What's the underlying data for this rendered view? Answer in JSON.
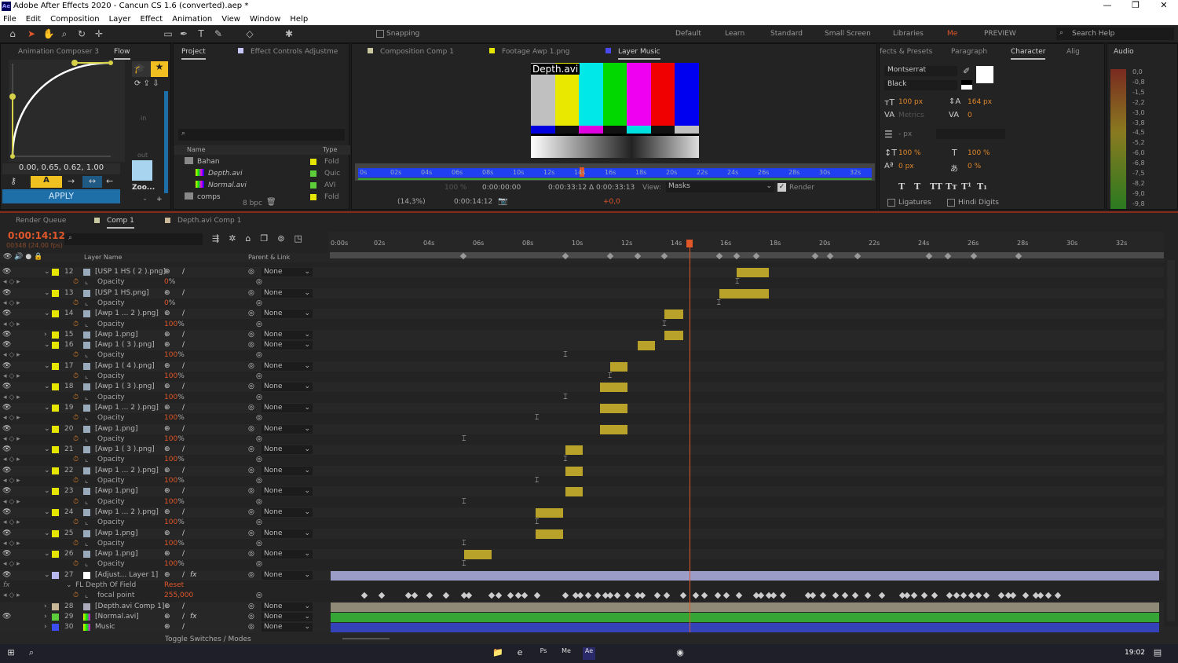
{
  "window": {
    "title": "Adobe After Effects 2020 - Cancun CS 1.6 (converted).aep *",
    "app_badge": "Ae"
  },
  "menu": [
    "File",
    "Edit",
    "Composition",
    "Layer",
    "Effect",
    "Animation",
    "View",
    "Window",
    "Help"
  ],
  "toolbar": {
    "snapping": "Snapping",
    "workspaces": [
      "Default",
      "Learn",
      "Standard",
      "Small Screen",
      "Libraries",
      "Me",
      "PREVIEW"
    ],
    "search_placeholder": "Search Help"
  },
  "animation_composer": {
    "tab": "Animation Composer 3",
    "tab2": "Flow",
    "curve_values": "0.00, 0.65, 0.62, 1.00",
    "apply": "APPLY",
    "a_label": "A",
    "in_label": "in",
    "out_label": "out",
    "preset_label": "Zoo...",
    "minus": "-",
    "plus": "+"
  },
  "project": {
    "tab": "Project",
    "tab2": "Effect Controls Adjustme",
    "col_name": "Name",
    "col_type": "Type",
    "bpc": "8 bpc",
    "items": [
      {
        "name": "Bahan",
        "type": "Fold",
        "color": "#e5e500",
        "kind": "folder"
      },
      {
        "name": "Depth.avi",
        "type": "Quic",
        "color": "#5ccc3a",
        "kind": "footage"
      },
      {
        "name": "Normal.avi",
        "type": "AVI",
        "color": "#5ccc3a",
        "kind": "footage"
      },
      {
        "name": "comps",
        "type": "Fold",
        "color": "#e5e500",
        "kind": "folder"
      }
    ]
  },
  "viewer": {
    "tabs": [
      "Composition Comp 1",
      "Footage Awp 1.png",
      "Layer Music"
    ],
    "footage_label": "Depth.avi",
    "ruler": [
      "0s",
      "02s",
      "04s",
      "06s",
      "08s",
      "10s",
      "12s",
      "14s",
      "16s",
      "18s",
      "20s",
      "22s",
      "24s",
      "26s",
      "28s",
      "30s",
      "32s"
    ],
    "in_time": "0:00:00:00",
    "out_time": "0:00:33:12",
    "duration": "Δ 0:00:33:13",
    "view_label": "View:",
    "view_value": "Masks",
    "render": "Render",
    "zoom": "(14,3%)",
    "current_time": "0:00:14:12",
    "exposure": "+0,0",
    "opacity": "100 %"
  },
  "character": {
    "tabs": [
      "fects & Presets",
      "Paragraph",
      "Character",
      "Alig"
    ],
    "font": "Montserrat",
    "style": "Black",
    "size": "100 px",
    "leading": "164 px",
    "kerning": "Metrics",
    "tracking": "0",
    "stroke": "- px",
    "vscale": "100 %",
    "hscale": "100 %",
    "baseline": "0 px",
    "tsume": "0 %",
    "ligatures": "Ligatures",
    "hindi": "Hindi Digits",
    "styles": [
      "T",
      "T",
      "TT",
      "Tт",
      "T¹",
      "T₁"
    ]
  },
  "audio": {
    "tab": "Audio",
    "levels": [
      "0,0",
      "-0,8",
      "-1,5",
      "-2,2",
      "-3,0",
      "-3,8",
      "-4,5",
      "-5,2",
      "-6,0",
      "-6,8",
      "-7,5",
      "-8,2",
      "-9,0",
      "-9,8"
    ]
  },
  "timeline": {
    "tabs": [
      "Render Queue",
      "Comp 1",
      "Depth.avi Comp 1"
    ],
    "timecode": "0:00:14:12",
    "frame_info": "00348 (24.00 fps)",
    "col_layer_name": "Layer Name",
    "col_parent": "Parent & Link",
    "toggle": "Toggle Switches / Modes",
    "ruler": [
      "0:00s",
      "02s",
      "04s",
      "06s",
      "08s",
      "10s",
      "12s",
      "14s",
      "16s",
      "18s",
      "20s",
      "22s",
      "24s",
      "26s",
      "28s",
      "30s",
      "32s"
    ],
    "current_time_s": 14.5,
    "duration_s": 33.5,
    "markers_s": [
      5.37,
      9.49,
      11.3,
      12.4,
      13.5,
      15.7,
      16.4,
      17.2,
      19.6,
      20.2,
      21.3,
      24.2,
      24.95,
      26.0,
      27.8
    ],
    "layers": [
      {
        "num": "12",
        "name": "[USP 1 HS ( 2 ).png]",
        "color": "#e5e500",
        "eye": true,
        "expanded": true,
        "opacity": "0",
        "in": 16.4,
        "out": 17.7,
        "key": 16.45,
        "parent": "None"
      },
      {
        "num": "13",
        "name": "[USP 1 HS.png]",
        "color": "#e5e500",
        "eye": true,
        "expanded": true,
        "opacity": "0",
        "in": 15.7,
        "out": 17.7,
        "key": 15.7,
        "parent": "None"
      },
      {
        "num": "14",
        "name": "[Awp 1 ... 2 ).png]",
        "color": "#e5e500",
        "eye": true,
        "expanded": true,
        "opacity": "100",
        "in": 13.5,
        "out": 14.25,
        "key": 13.5,
        "parent": "None"
      },
      {
        "num": "15",
        "name": "[Awp 1.png]",
        "color": "#e5e500",
        "eye": true,
        "expanded": false,
        "in": 13.5,
        "out": 14.25,
        "parent": "None"
      },
      {
        "num": "16",
        "name": "[Awp 1 ( 3 ).png]",
        "color": "#e5e500",
        "eye": true,
        "expanded": true,
        "opacity": "100",
        "in": 12.4,
        "out": 13.1,
        "key": 9.5,
        "parent": "None"
      },
      {
        "num": "17",
        "name": "[Awp 1 ( 4 ).png]",
        "color": "#e5e500",
        "eye": true,
        "expanded": true,
        "opacity": "100",
        "in": 11.3,
        "out": 12.0,
        "key": 11.3,
        "parent": "None"
      },
      {
        "num": "18",
        "name": "[Awp 1 ( 3 ).png]",
        "color": "#e5e500",
        "eye": true,
        "expanded": true,
        "opacity": "100",
        "in": 10.9,
        "out": 12.0,
        "key": 9.5,
        "parent": "None"
      },
      {
        "num": "19",
        "name": "[Awp 1 ... 2 ).png]",
        "color": "#e5e500",
        "eye": true,
        "expanded": true,
        "opacity": "100",
        "in": 10.9,
        "out": 12.0,
        "key": 8.35,
        "parent": "None"
      },
      {
        "num": "20",
        "name": "[Awp 1.png]",
        "color": "#e5e500",
        "eye": true,
        "expanded": true,
        "opacity": "100",
        "in": 10.9,
        "out": 12.0,
        "key": 5.4,
        "parent": "None"
      },
      {
        "num": "21",
        "name": "[Awp 1 ( 3 ).png]",
        "color": "#e5e500",
        "eye": true,
        "expanded": true,
        "opacity": "100",
        "in": 9.5,
        "out": 10.2,
        "key": 9.5,
        "parent": "None"
      },
      {
        "num": "22",
        "name": "[Awp 1 ... 2 ).png]",
        "color": "#e5e500",
        "eye": true,
        "expanded": true,
        "opacity": "100",
        "in": 9.5,
        "out": 10.2,
        "key": 8.35,
        "parent": "None"
      },
      {
        "num": "23",
        "name": "[Awp 1.png]",
        "color": "#e5e500",
        "eye": true,
        "expanded": true,
        "opacity": "100",
        "in": 9.5,
        "out": 10.2,
        "key": 5.4,
        "parent": "None"
      },
      {
        "num": "24",
        "name": "[Awp 1 ... 2 ).png]",
        "color": "#e5e500",
        "eye": true,
        "expanded": true,
        "opacity": "100",
        "in": 8.3,
        "out": 9.4,
        "key": 8.35,
        "parent": "None"
      },
      {
        "num": "25",
        "name": "[Awp 1.png]",
        "color": "#e5e500",
        "eye": true,
        "expanded": true,
        "opacity": "100",
        "in": 8.3,
        "out": 9.4,
        "key": 5.4,
        "parent": "None"
      },
      {
        "num": "26",
        "name": "[Awp 1.png]",
        "color": "#e5e500",
        "eye": true,
        "expanded": true,
        "opacity": "100",
        "in": 5.4,
        "out": 6.5,
        "key": 5.4,
        "parent": "None"
      }
    ],
    "adjustment": {
      "num": "27",
      "name": "[Adjust... Layer 1]",
      "color": "#b8b8f0",
      "bar": "#9c9cc8",
      "parent": "None",
      "effect": "FL Depth Of Field",
      "reset": "Reset",
      "prop": "focal point",
      "value": "255,000",
      "keys_s": [
        1.35,
        2.06,
        3.14,
        3.4,
        4.0,
        4.66,
        5.4,
        5.6,
        6.5,
        6.8,
        7.27,
        7.6,
        7.84,
        8.35,
        9.49,
        9.9,
        10.1,
        10.4,
        10.8,
        11.1,
        11.3,
        11.6,
        12.0,
        12.4,
        12.6,
        13.2,
        13.6,
        14.25,
        14.76,
        15.1,
        15.64,
        16.0,
        16.5,
        17.2,
        17.4,
        17.7,
        17.9,
        18.3,
        19.3,
        19.5,
        19.9,
        20.4,
        20.8,
        21.2,
        21.7,
        22.3,
        23.1,
        23.3,
        23.6,
        24.0,
        24.4,
        25.0,
        25.3,
        25.6,
        25.9,
        26.2,
        26.5,
        27.1,
        27.4,
        27.6,
        28.1,
        28.5,
        28.7,
        29.0,
        29.4
      ]
    },
    "bottom_layers": [
      {
        "num": "28",
        "name": "[Depth.avi Comp 1]",
        "color": "#c8b898",
        "bar": "#8f8a78",
        "eye": false,
        "parent": "None"
      },
      {
        "num": "29",
        "name": "[Normal.avi]",
        "color": "#5ccc3a",
        "bar": "#35a535",
        "eye": true,
        "parent": "None"
      },
      {
        "num": "30",
        "name": "Music",
        "color": "#3b4ef0",
        "bar": "#3444b8",
        "eye": false,
        "parent": "None"
      }
    ],
    "opacity_label": "Opacity",
    "layer_bar_color": "#b8a22a",
    "playhead_color": "#e0572a"
  },
  "taskbar": {
    "clock": "19:02",
    "apps": [
      "Ps",
      "Me",
      "Ae"
    ]
  }
}
